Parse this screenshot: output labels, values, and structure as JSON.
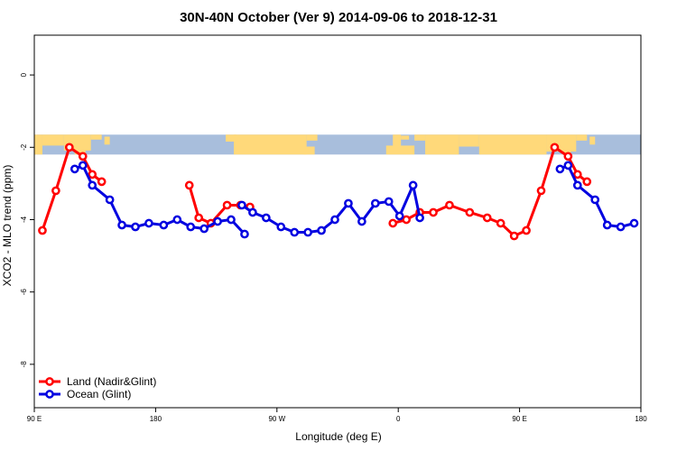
{
  "chart_data": {
    "type": "line",
    "title": "30N-40N October (Ver 9)   2014-09-06 to 2018-12-31",
    "xlabel": "Longitude (deg E)",
    "ylabel": "XCO2 - MLO trend (ppm)",
    "xlim": [
      90,
      540
    ],
    "ylim": [
      -9.2,
      1.1
    ],
    "xticks": [
      {
        "value": 90,
        "label": "90 E"
      },
      {
        "value": 180,
        "label": "180"
      },
      {
        "value": 270,
        "label": "90 W"
      },
      {
        "value": 360,
        "label": "0"
      },
      {
        "value": 450,
        "label": "90 E"
      },
      {
        "value": 540,
        "label": "180"
      }
    ],
    "yticks": [
      {
        "value": 0,
        "label": "0"
      },
      {
        "value": -2,
        "label": "-2"
      },
      {
        "value": -4,
        "label": "-4"
      },
      {
        "value": -6,
        "label": "-6"
      },
      {
        "value": -8,
        "label": "-8"
      }
    ],
    "map_band": {
      "ymin": -2.2,
      "ymax": -1.65,
      "ocean_color": "#a8bedc",
      "land_color": "#ffd97a"
    },
    "legend_position": "bottom-left",
    "series": [
      {
        "name": "Land (Nadir&Glint)",
        "color": "#ff0000",
        "segments": [
          [
            [
              96,
              -4.3
            ],
            [
              106,
              -3.2
            ],
            [
              116,
              -2.0
            ],
            [
              126,
              -2.25
            ],
            [
              133,
              -2.75
            ],
            [
              140,
              -2.95
            ]
          ],
          [
            [
              205,
              -3.05
            ],
            [
              212,
              -3.95
            ],
            [
              221,
              -4.1
            ],
            [
              233,
              -3.6
            ],
            [
              243,
              -3.6
            ],
            [
              250,
              -3.65
            ]
          ],
          [
            [
              356,
              -4.1
            ],
            [
              366,
              -4.0
            ],
            [
              376,
              -3.8
            ],
            [
              386,
              -3.8
            ],
            [
              398,
              -3.6
            ],
            [
              413,
              -3.8
            ],
            [
              426,
              -3.95
            ],
            [
              436,
              -4.1
            ],
            [
              446,
              -4.45
            ],
            [
              455,
              -4.3
            ],
            [
              466,
              -3.2
            ],
            [
              476,
              -2.0
            ],
            [
              486,
              -2.25
            ],
            [
              493,
              -2.75
            ],
            [
              500,
              -2.95
            ]
          ]
        ]
      },
      {
        "name": "Ocean (Glint)",
        "color": "#0000e0",
        "segments": [
          [
            [
              120,
              -2.6
            ],
            [
              126,
              -2.5
            ],
            [
              133,
              -3.05
            ],
            [
              146,
              -3.45
            ],
            [
              155,
              -4.15
            ],
            [
              165,
              -4.2
            ],
            [
              175,
              -4.1
            ],
            [
              186,
              -4.15
            ],
            [
              196,
              -4.0
            ],
            [
              206,
              -4.2
            ],
            [
              216,
              -4.25
            ],
            [
              226,
              -4.05
            ],
            [
              236,
              -4.0
            ],
            [
              246,
              -4.4
            ]
          ],
          [
            [
              244,
              -3.6
            ],
            [
              252,
              -3.8
            ],
            [
              262,
              -3.95
            ],
            [
              273,
              -4.2
            ],
            [
              283,
              -4.35
            ],
            [
              293,
              -4.35
            ],
            [
              303,
              -4.3
            ],
            [
              313,
              -4.0
            ],
            [
              323,
              -3.55
            ],
            [
              333,
              -4.05
            ],
            [
              343,
              -3.55
            ],
            [
              353,
              -3.5
            ],
            [
              361,
              -3.9
            ],
            [
              371,
              -3.05
            ],
            [
              376,
              -3.95
            ]
          ],
          [
            [
              480,
              -2.6
            ],
            [
              486,
              -2.5
            ],
            [
              493,
              -3.05
            ],
            [
              506,
              -3.45
            ],
            [
              515,
              -4.15
            ],
            [
              525,
              -4.2
            ],
            [
              535,
              -4.1
            ]
          ]
        ]
      }
    ]
  }
}
